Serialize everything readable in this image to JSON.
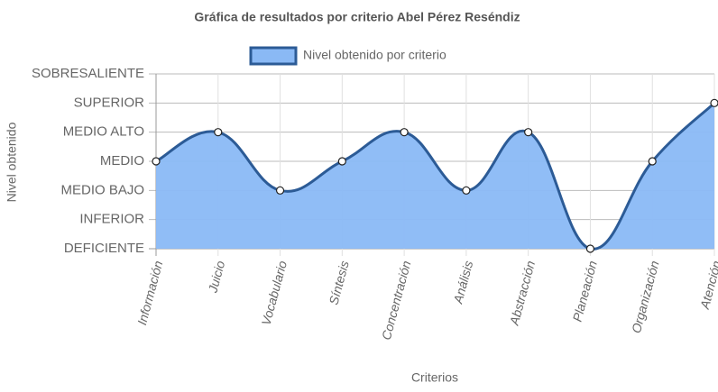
{
  "chart_data": {
    "type": "line",
    "title": "Gráfica de resultados por criterio Abel Pérez Reséndiz",
    "x_label": "Criterios",
    "y_label": "Nivel obtenido",
    "categories": [
      "Información",
      "Juicio",
      "Vocabulario",
      "Síntesis",
      "Concentración",
      "Análisis",
      "Abstracción",
      "Planeación",
      "Organización",
      "Atención"
    ],
    "series": [
      {
        "name": "Nivel obtenido por criterio",
        "color": "#2c5b96",
        "fill": "#8ab9f5",
        "values": [
          3,
          4,
          2,
          3,
          4,
          2,
          4,
          0,
          3,
          5
        ]
      }
    ],
    "ylim": [
      0,
      6
    ],
    "yticks": [
      {
        "value": 0,
        "label": "DEFICIENTE"
      },
      {
        "value": 1,
        "label": "INFERIOR"
      },
      {
        "value": 2,
        "label": "MEDIO BAJO"
      },
      {
        "value": 3,
        "label": "MEDIO"
      },
      {
        "value": 4,
        "label": "MEDIO ALTO"
      },
      {
        "value": 5,
        "label": "SUPERIOR"
      },
      {
        "value": 6,
        "label": "SOBRESALIENTE"
      }
    ],
    "grid": true,
    "legend": "top"
  }
}
